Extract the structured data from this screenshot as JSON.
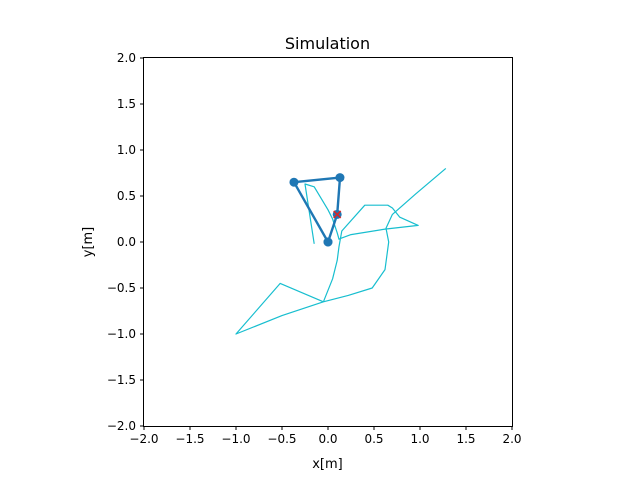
{
  "chart_data": {
    "type": "line",
    "title": "Simulation",
    "xlabel": "x[m]",
    "ylabel": "y[m]",
    "xlim": [
      -2.0,
      2.0
    ],
    "ylim": [
      -2.0,
      2.0
    ],
    "xticks": [
      "−2.0",
      "−1.5",
      "−1.0",
      "−0.5",
      "0.0",
      "0.5",
      "1.0",
      "1.5",
      "2.0"
    ],
    "xtick_values": [
      -2.0,
      -1.5,
      -1.0,
      -0.5,
      0.0,
      0.5,
      1.0,
      1.5,
      2.0
    ],
    "yticks": [
      "−2.0",
      "−1.5",
      "−1.0",
      "−0.5",
      "0.0",
      "0.5",
      "1.0",
      "1.5",
      "2.0"
    ],
    "ytick_values": [
      -2.0,
      -1.5,
      -1.0,
      -0.5,
      0.0,
      0.5,
      1.0,
      1.5,
      2.0
    ],
    "grid": false,
    "series": [
      {
        "color": "#17becf",
        "style": "thin-line",
        "x": [
          1.28,
          0.95,
          0.7,
          0.63,
          0.66,
          0.62,
          0.48,
          0.22,
          -0.05,
          -0.52,
          -1.0,
          -0.5,
          -0.05,
          0.05,
          0.1,
          0.12,
          0.15,
          0.4,
          0.6,
          0.65,
          0.7,
          0.78,
          0.98,
          0.62,
          0.25,
          0.14,
          0.12,
          0.1,
          0.05,
          0.0,
          -0.15,
          -0.25,
          -0.15
        ],
        "y": [
          0.8,
          0.52,
          0.3,
          0.15,
          0.0,
          -0.3,
          -0.5,
          -0.58,
          -0.65,
          -0.45,
          -1.0,
          -0.8,
          -0.65,
          -0.4,
          -0.2,
          -0.05,
          0.12,
          0.4,
          0.4,
          0.4,
          0.37,
          0.27,
          0.18,
          0.14,
          0.08,
          0.04,
          0.03,
          0.1,
          0.25,
          0.35,
          0.6,
          0.63,
          -0.02
        ]
      },
      {
        "color": "#1f77b4",
        "style": "thick-line-with-markers",
        "x": [
          0.0,
          -0.37,
          0.13,
          0.1,
          0.0
        ],
        "y": [
          0.0,
          0.65,
          0.7,
          0.3,
          0.0
        ]
      }
    ],
    "target": {
      "x": 0.1,
      "y": 0.3,
      "marker": "x",
      "color": "#d62728"
    }
  }
}
